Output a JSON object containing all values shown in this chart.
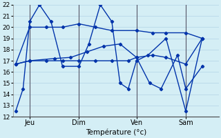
{
  "xlabel": "Température (°c)",
  "ylim": [
    12,
    22
  ],
  "background_color": "#d4eef5",
  "grid_color": "#b8d8e8",
  "line_color": "#0033aa",
  "vline_color": "#555566",
  "vline_positions": [
    1.0,
    4.0,
    7.5,
    10.5
  ],
  "vline_labels": [
    "Jeu",
    "Dim",
    "Ven",
    "Sam"
  ],
  "xlim": [
    0,
    12.5
  ],
  "series": [
    {
      "x": [
        0.15,
        0.6,
        1.0,
        1.6,
        2.3,
        3.0,
        4.0,
        4.6,
        5.3,
        6.0,
        6.5,
        7.0,
        7.5,
        8.2,
        9.3,
        10.5,
        11.5
      ],
      "y": [
        12.5,
        14.5,
        20.5,
        22.0,
        20.5,
        16.5,
        16.5,
        18.5,
        22.0,
        20.5,
        15.0,
        14.5,
        17.0,
        17.5,
        19.0,
        12.5,
        19.0
      ]
    },
    {
      "x": [
        0.15,
        1.0,
        2.0,
        3.0,
        4.0,
        5.0,
        6.0,
        7.0,
        7.5,
        8.5,
        9.3,
        10.5,
        11.5
      ],
      "y": [
        16.7,
        17.0,
        17.0,
        17.0,
        17.0,
        17.0,
        17.0,
        17.0,
        17.3,
        17.5,
        17.3,
        16.7,
        19.0
      ]
    },
    {
      "x": [
        0.15,
        1.0,
        2.0,
        3.0,
        4.0,
        5.0,
        6.0,
        7.5,
        8.5,
        9.3,
        10.5,
        11.5
      ],
      "y": [
        16.7,
        20.0,
        20.0,
        20.0,
        20.3,
        20.0,
        19.7,
        19.7,
        19.5,
        19.5,
        19.5,
        19.0
      ]
    },
    {
      "x": [
        0.15,
        1.0,
        2.5,
        3.5,
        4.5,
        5.5,
        6.5,
        7.5,
        8.3,
        9.0,
        10.0,
        10.5,
        11.5
      ],
      "y": [
        16.7,
        17.0,
        17.2,
        17.3,
        17.8,
        18.3,
        18.5,
        17.3,
        15.0,
        14.5,
        17.5,
        14.5,
        16.5
      ]
    }
  ]
}
